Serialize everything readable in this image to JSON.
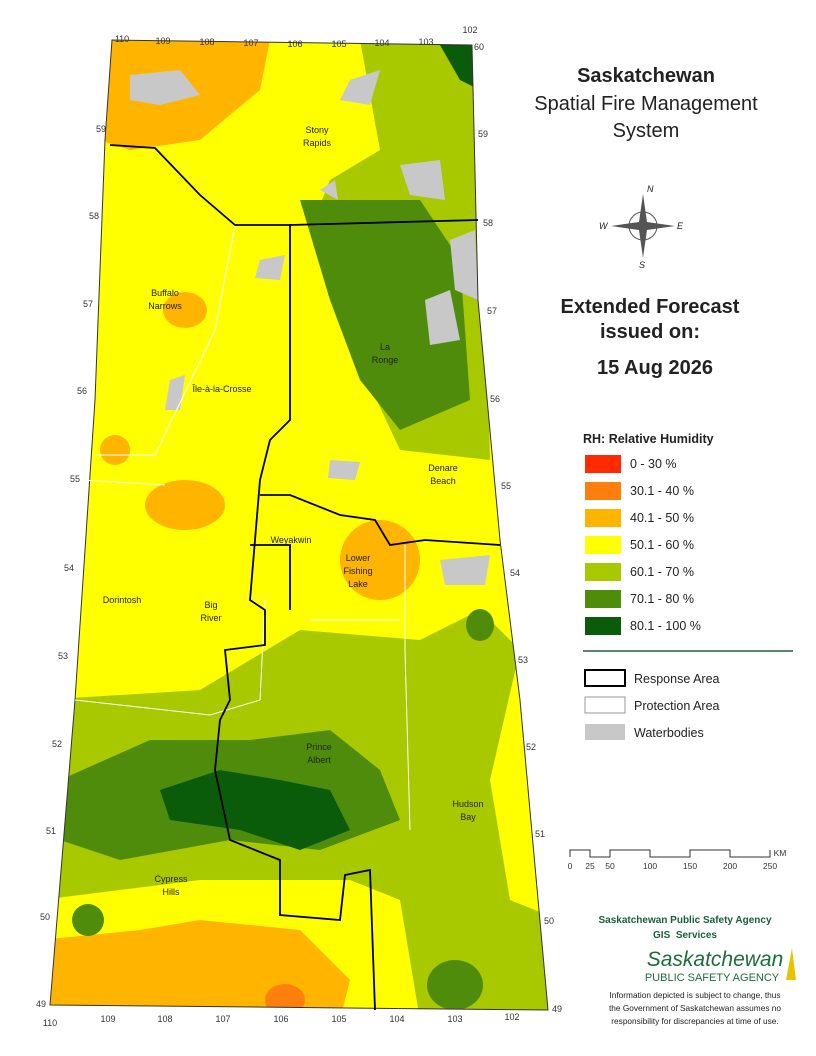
{
  "title": [
    "Saskatchewan",
    "Spatial Fire Management",
    "System"
  ],
  "forecast": {
    "heading": [
      "Extended Forecast",
      "issued on:"
    ],
    "date": "15 Aug 2026"
  },
  "legend": {
    "title": "RH: Relative Humidity",
    "classes": [
      {
        "label": "0 - 30 %",
        "color": "#ff2a00"
      },
      {
        "label": "30.1 - 40 %",
        "color": "#ff7f0e"
      },
      {
        "label": "40.1 - 50 %",
        "color": "#ffb400"
      },
      {
        "label": "50.1 - 60 %",
        "color": "#ffff00"
      },
      {
        "label": "60.1 - 70 %",
        "color": "#a8c800"
      },
      {
        "label": "70.1 - 80 %",
        "color": "#4f8c0c"
      },
      {
        "label": "80.1 - 100 %",
        "color": "#0a5c0a"
      }
    ],
    "boundaries": [
      {
        "label": "Response Area"
      },
      {
        "label": "Protection Area"
      },
      {
        "label": "Waterbodies",
        "color": "#c8c8c8"
      }
    ]
  },
  "places": [
    [
      "Stony",
      "Rapids"
    ],
    [
      "Buffalo",
      "Narrows"
    ],
    [
      "La",
      "Ronge"
    ],
    [
      "Île-à-la-Crosse"
    ],
    [
      "Denare",
      "Beach"
    ],
    [
      "Weyakwin"
    ],
    [
      "Lower",
      "Fishing",
      "Lake"
    ],
    [
      "Dorintosh"
    ],
    [
      "Big",
      "River"
    ],
    [
      "Prince",
      "Albert"
    ],
    [
      "Hudson",
      "Bay"
    ],
    [
      "Cypress",
      "Hills"
    ]
  ],
  "longitudes_top": [
    "110",
    "109",
    "108",
    "107",
    "106",
    "105",
    "104",
    "103",
    "102"
  ],
  "longitudes_bottom": [
    "110",
    "109",
    "108",
    "107",
    "106",
    "105",
    "104",
    "103",
    "102"
  ],
  "latitudes_left": [
    "59",
    "58",
    "57",
    "56",
    "55",
    "54",
    "53",
    "52",
    "51",
    "50",
    "49"
  ],
  "latitudes_right": [
    "60",
    "59",
    "58",
    "57",
    "56",
    "55",
    "54",
    "53",
    "52",
    "51",
    "50",
    "49"
  ],
  "compass": [
    "N",
    "E",
    "S",
    "W"
  ],
  "scale": {
    "ticks": [
      "0",
      "25",
      "50",
      "100",
      "150",
      "200",
      "250"
    ],
    "unit": "KM"
  },
  "agency": {
    "name": "Saskatchewan Public Safety Agency",
    "unit": "GIS  Services",
    "logo": [
      "Saskatchewan",
      "PUBLIC SAFETY AGENCY"
    ]
  },
  "disclaimer": [
    "Information depicted is subject to change, thus",
    "the Government of Saskatchewan assumes no",
    "responsibility for discrepancies at time of use."
  ]
}
